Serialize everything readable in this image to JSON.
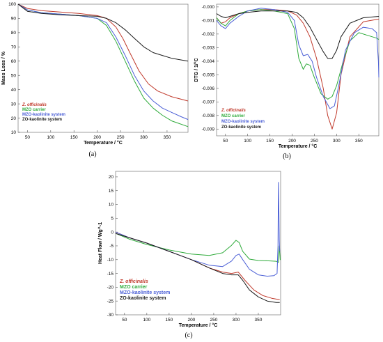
{
  "figure": {
    "panel_labels": [
      "(a)",
      "(b)",
      "(c)"
    ]
  },
  "chart_data": [
    {
      "panel": "(a)",
      "type": "line",
      "xlabel": "Temperature / °C",
      "ylabel": "Mass Loss / %",
      "xlim": [
        30,
        395
      ],
      "ylim": [
        10,
        100
      ],
      "xticks": [
        50,
        100,
        150,
        200,
        250,
        300,
        350
      ],
      "yticks": [
        10,
        20,
        30,
        40,
        50,
        60,
        70,
        80,
        90,
        100
      ],
      "legend_position": "bottom-left",
      "series": [
        {
          "name": "Z. officinalis",
          "color": "#c0392b",
          "italic": true,
          "x": [
            30,
            50,
            80,
            120,
            160,
            200,
            220,
            240,
            255,
            270,
            290,
            310,
            330,
            360,
            395
          ],
          "y": [
            100,
            97,
            95.5,
            94.5,
            93.5,
            92,
            90,
            84,
            76,
            66,
            53,
            44,
            39,
            35,
            32
          ]
        },
        {
          "name": "MZO carrier",
          "color": "#2eaa3a",
          "italic": false,
          "x": [
            30,
            50,
            80,
            120,
            160,
            200,
            220,
            240,
            260,
            280,
            300,
            320,
            340,
            360,
            395
          ],
          "y": [
            100,
            96,
            94,
            93,
            92,
            90,
            85,
            74,
            60,
            46,
            34,
            27,
            22,
            18,
            14
          ]
        },
        {
          "name": "MZO-kaolinite system",
          "color": "#4b5fd6",
          "italic": false,
          "x": [
            30,
            50,
            80,
            120,
            160,
            200,
            220,
            240,
            260,
            280,
            300,
            320,
            340,
            360,
            380,
            395
          ],
          "y": [
            100,
            96,
            94,
            93,
            92,
            90,
            87,
            77,
            64,
            50,
            39,
            32,
            27,
            24,
            21,
            19
          ]
        },
        {
          "name": "ZO-kaolinite system",
          "color": "#1a1a1a",
          "italic": false,
          "x": [
            30,
            50,
            80,
            120,
            160,
            200,
            220,
            240,
            260,
            280,
            300,
            320,
            340,
            360,
            395
          ],
          "y": [
            100,
            95,
            93.5,
            92.5,
            92,
            91.5,
            90,
            87,
            82,
            76,
            70,
            66,
            64,
            62,
            60
          ]
        }
      ]
    },
    {
      "panel": "(b)",
      "type": "line",
      "xlabel": "Temperature / °C",
      "ylabel": "DTG / 1/°C",
      "xlim": [
        30,
        395
      ],
      "ylim": [
        -0.0095,
        0.0002
      ],
      "xticks": [
        50,
        100,
        150,
        200,
        250,
        300,
        350
      ],
      "yticks": [
        0,
        -0.001,
        -0.002,
        -0.003,
        -0.004,
        -0.005,
        -0.006,
        -0.007,
        -0.008,
        -0.009
      ],
      "ytick_labels": [
        "-0.000",
        "-0.001",
        "-0.002",
        "-0.003",
        "-0.004",
        "-0.005",
        "-0.006",
        "-0.007",
        "-0.008",
        "-0.009"
      ],
      "legend_position": "bottom-left",
      "series": [
        {
          "name": "Z. officinalis",
          "color": "#c0392b",
          "italic": true,
          "x": [
            30,
            40,
            50,
            60,
            80,
            100,
            130,
            160,
            190,
            210,
            225,
            240,
            255,
            270,
            280,
            290,
            300,
            310,
            330,
            360,
            395
          ],
          "y": [
            -0.0008,
            -0.0012,
            -0.0011,
            -0.0008,
            -0.0005,
            -0.0003,
            -0.0002,
            -0.0002,
            -0.0003,
            -0.0006,
            -0.0012,
            -0.0022,
            -0.0038,
            -0.006,
            -0.008,
            -0.009,
            -0.0078,
            -0.005,
            -0.0022,
            -0.0011,
            -0.0009
          ]
        },
        {
          "name": "MZO carrier",
          "color": "#2eaa3a",
          "italic": false,
          "x": [
            30,
            40,
            50,
            60,
            80,
            100,
            130,
            160,
            190,
            205,
            215,
            225,
            232,
            240,
            250,
            265,
            280,
            290,
            300,
            315,
            330,
            350,
            370,
            390,
            395
          ],
          "y": [
            -0.0008,
            -0.0012,
            -0.0014,
            -0.001,
            -0.0005,
            -0.0003,
            -0.0002,
            -0.0003,
            -0.0005,
            -0.0016,
            -0.0038,
            -0.0046,
            -0.0042,
            -0.0043,
            -0.0052,
            -0.0064,
            -0.0068,
            -0.0066,
            -0.0058,
            -0.004,
            -0.0025,
            -0.0019,
            -0.0021,
            -0.0023,
            -0.0024
          ]
        },
        {
          "name": "MZO-kaolinite system",
          "color": "#4b5fd6",
          "italic": false,
          "x": [
            30,
            40,
            50,
            60,
            80,
            100,
            130,
            160,
            190,
            205,
            215,
            225,
            235,
            245,
            255,
            270,
            285,
            295,
            305,
            320,
            340,
            360,
            380,
            390,
            394,
            395
          ],
          "y": [
            -0.001,
            -0.0014,
            -0.0016,
            -0.0012,
            -0.0007,
            -0.0003,
            -0.0001,
            -0.0002,
            -0.0004,
            -0.001,
            -0.0028,
            -0.0036,
            -0.0035,
            -0.004,
            -0.0052,
            -0.0066,
            -0.0075,
            -0.0073,
            -0.0058,
            -0.0032,
            -0.0019,
            -0.0015,
            -0.0016,
            -0.0019,
            -0.004,
            -0.0052
          ]
        },
        {
          "name": "ZO-kaolinite system",
          "color": "#1a1a1a",
          "italic": false,
          "x": [
            30,
            40,
            50,
            60,
            80,
            100,
            130,
            160,
            190,
            210,
            225,
            240,
            255,
            270,
            280,
            290,
            300,
            310,
            330,
            360,
            395
          ],
          "y": [
            -0.0005,
            -0.0007,
            -0.0008,
            -0.0007,
            -0.0005,
            -0.0004,
            -0.0003,
            -0.0003,
            -0.0003,
            -0.0004,
            -0.0008,
            -0.0015,
            -0.0024,
            -0.0033,
            -0.0038,
            -0.0038,
            -0.0032,
            -0.0022,
            -0.0012,
            -0.0008,
            -0.0007
          ]
        }
      ]
    },
    {
      "panel": "(c)",
      "type": "line",
      "xlabel": "Temperature / °C",
      "ylabel": "Heat Flow / Wg^-1",
      "xlim": [
        30,
        400
      ],
      "ylim": [
        -30,
        22
      ],
      "xticks": [
        50,
        100,
        150,
        200,
        250,
        300,
        350
      ],
      "yticks": [
        20,
        15,
        10,
        5,
        0,
        -5,
        -10,
        -15,
        -20,
        -25,
        -30
      ],
      "legend_position": "bottom-left",
      "series": [
        {
          "name": "Z. officinalis",
          "color": "#c0392b",
          "italic": true,
          "x": [
            30,
            60,
            100,
            150,
            200,
            240,
            270,
            290,
            305,
            320,
            340,
            360,
            380,
            398
          ],
          "y": [
            0,
            -2,
            -4,
            -7,
            -10,
            -13,
            -14.5,
            -15,
            -14.5,
            -17.5,
            -21,
            -23,
            -24,
            -24.5
          ]
        },
        {
          "name": "MZO carrier",
          "color": "#2eaa3a",
          "italic": false,
          "x": [
            30,
            60,
            100,
            150,
            200,
            240,
            270,
            290,
            300,
            307,
            315,
            330,
            350,
            370,
            390,
            395,
            397,
            399,
            400
          ],
          "y": [
            -0.5,
            -2.5,
            -4.5,
            -6.5,
            -8,
            -8.5,
            -7.5,
            -4.8,
            -3,
            -3.8,
            -7,
            -9.8,
            -10.3,
            -10.4,
            -10.6,
            -11,
            -5,
            -10,
            -10
          ]
        },
        {
          "name": "MZO-kaolinite system",
          "color": "#4b5fd6",
          "italic": false,
          "x": [
            30,
            60,
            100,
            150,
            200,
            240,
            270,
            290,
            300,
            307,
            315,
            330,
            350,
            370,
            385,
            392,
            394,
            395,
            396,
            397,
            398
          ],
          "y": [
            0,
            -2,
            -4,
            -7,
            -10,
            -12,
            -12.5,
            -10.5,
            -8.5,
            -8,
            -10,
            -13.5,
            -15.5,
            -16,
            -15.8,
            -15,
            -5,
            18,
            10,
            -3,
            -7
          ]
        },
        {
          "name": "ZO-kaolinite system",
          "color": "#1a1a1a",
          "italic": false,
          "x": [
            30,
            60,
            100,
            150,
            200,
            240,
            270,
            290,
            305,
            315,
            330,
            350,
            370,
            390,
            398
          ],
          "y": [
            -0.5,
            -2,
            -4,
            -7,
            -10,
            -13,
            -15,
            -15.5,
            -15.5,
            -17.5,
            -21,
            -23.5,
            -25,
            -25.5,
            -25.5
          ]
        }
      ]
    }
  ]
}
